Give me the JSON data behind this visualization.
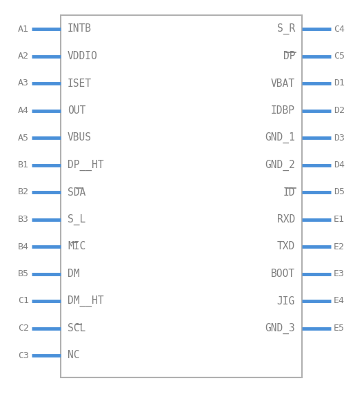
{
  "bg_color": "#ffffff",
  "border_color": "#b0b0b0",
  "pin_color": "#4a90d9",
  "text_color": "#808080",
  "left_pins": [
    {
      "label": "A1",
      "signal": "INTB",
      "overline_chars": ""
    },
    {
      "label": "A2",
      "signal": "VDDIO",
      "overline_chars": ""
    },
    {
      "label": "A3",
      "signal": "ISET",
      "overline_chars": ""
    },
    {
      "label": "A4",
      "signal": "OUT",
      "overline_chars": ""
    },
    {
      "label": "A5",
      "signal": "VBUS",
      "overline_chars": ""
    },
    {
      "label": "B1",
      "signal": "DP__HT",
      "overline_chars": ""
    },
    {
      "label": "B2",
      "signal": "SDA",
      "overline_chars": "A"
    },
    {
      "label": "B3",
      "signal": "S_L",
      "overline_chars": ""
    },
    {
      "label": "B4",
      "signal": "MIC",
      "overline_chars": "I"
    },
    {
      "label": "B5",
      "signal": "DM",
      "overline_chars": ""
    },
    {
      "label": "C1",
      "signal": "DM__HT",
      "overline_chars": ""
    },
    {
      "label": "C2",
      "signal": "SCL",
      "overline_chars": "L"
    },
    {
      "label": "C3",
      "signal": "NC",
      "overline_chars": ""
    }
  ],
  "right_pins": [
    {
      "label": "C4",
      "signal": "S_R",
      "overline_chars": ""
    },
    {
      "label": "C5",
      "signal": "DP",
      "overline_chars": "DP"
    },
    {
      "label": "D1",
      "signal": "VBAT",
      "overline_chars": ""
    },
    {
      "label": "D2",
      "signal": "IDBP",
      "overline_chars": ""
    },
    {
      "label": "D3",
      "signal": "GND_1",
      "overline_chars": ""
    },
    {
      "label": "D4",
      "signal": "GND_2",
      "overline_chars": ""
    },
    {
      "label": "D5",
      "signal": "ID",
      "overline_chars": "ID"
    },
    {
      "label": "E1",
      "signal": "RXD",
      "overline_chars": ""
    },
    {
      "label": "E2",
      "signal": "TXD",
      "overline_chars": ""
    },
    {
      "label": "E3",
      "signal": "BOOT",
      "overline_chars": ""
    },
    {
      "label": "E4",
      "signal": "JIG",
      "overline_chars": ""
    },
    {
      "label": "E5",
      "signal": "GND_3",
      "overline_chars": ""
    }
  ]
}
